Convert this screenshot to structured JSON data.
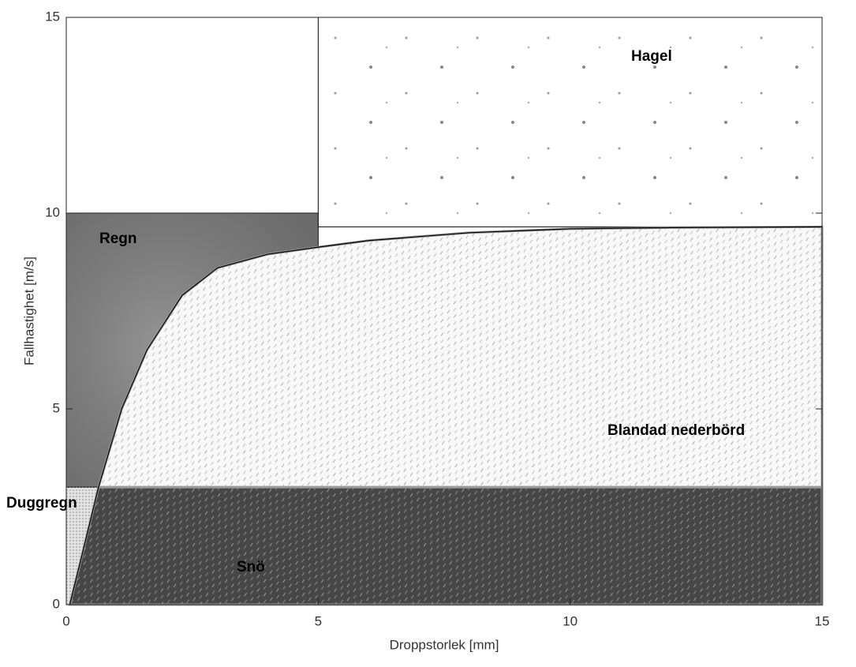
{
  "chart_data": {
    "type": "region",
    "xlabel": "Droppstorlek [mm]",
    "ylabel": "Fallhastighet [m/s]",
    "xlim": [
      0,
      15
    ],
    "ylim": [
      0,
      15
    ],
    "xticks": [
      0,
      5,
      10,
      15
    ],
    "yticks": [
      0,
      5,
      10,
      15
    ],
    "boundary": {
      "x": [
        0.07,
        0.3,
        0.64,
        1.1,
        1.6,
        2.3,
        3,
        4,
        5,
        6,
        8,
        10,
        12,
        15
      ],
      "y": [
        0,
        1.2,
        3,
        5,
        6.5,
        7.9,
        8.6,
        8.95,
        9.13,
        9.3,
        9.5,
        9.6,
        9.63,
        9.65
      ]
    },
    "regions": [
      {
        "name": "Regn",
        "color": "#7c7c7c",
        "texture": "mottled",
        "x": [
          0,
          5
        ],
        "y": [
          3,
          10
        ]
      },
      {
        "name": "Hagel",
        "color": "#ffffff",
        "texture": "dots",
        "x": [
          5,
          15
        ],
        "y": [
          9.65,
          15
        ]
      },
      {
        "name": "Blandad nederbörd",
        "color": "#f8f8f8",
        "texture": "hatch",
        "clip": "right",
        "x": [
          0,
          15
        ],
        "y": [
          3,
          9.65
        ]
      },
      {
        "name": "Duggregn",
        "color": "#e2e2e2",
        "texture": "speckle",
        "x": [
          0,
          0.8
        ],
        "y": [
          0,
          3
        ]
      },
      {
        "name": "Snö",
        "color": "#474747",
        "texture": "hatch",
        "clip": "right",
        "x": [
          0,
          15
        ],
        "y": [
          0,
          3
        ]
      }
    ]
  }
}
